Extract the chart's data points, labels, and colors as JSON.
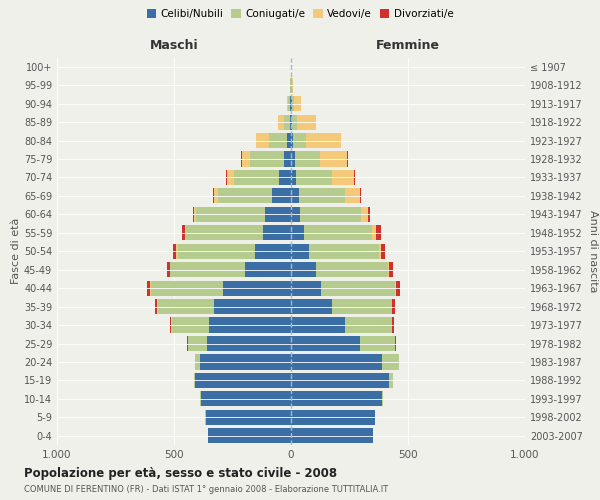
{
  "age_groups": [
    "0-4",
    "5-9",
    "10-14",
    "15-19",
    "20-24",
    "25-29",
    "30-34",
    "35-39",
    "40-44",
    "45-49",
    "50-54",
    "55-59",
    "60-64",
    "65-69",
    "70-74",
    "75-79",
    "80-84",
    "85-89",
    "90-94",
    "95-99",
    "100+"
  ],
  "birth_years": [
    "2003-2007",
    "1998-2002",
    "1993-1997",
    "1988-1992",
    "1983-1987",
    "1978-1982",
    "1973-1977",
    "1968-1972",
    "1963-1967",
    "1958-1962",
    "1953-1957",
    "1948-1952",
    "1943-1947",
    "1938-1942",
    "1933-1937",
    "1928-1932",
    "1923-1927",
    "1918-1922",
    "1913-1917",
    "1908-1912",
    "≤ 1907"
  ],
  "colors": {
    "celibe": "#3a6ea5",
    "coniugato": "#b5cc8e",
    "vedovo": "#f5c97a",
    "divorziato": "#d0312d"
  },
  "maschi": {
    "celibe": [
      355,
      365,
      385,
      410,
      390,
      360,
      350,
      330,
      290,
      195,
      155,
      120,
      110,
      80,
      50,
      30,
      15,
      5,
      3,
      2,
      2
    ],
    "coniugato": [
      0,
      1,
      2,
      5,
      20,
      80,
      160,
      240,
      310,
      320,
      330,
      330,
      295,
      230,
      195,
      145,
      80,
      25,
      8,
      2,
      0
    ],
    "vedovo": [
      0,
      0,
      0,
      0,
      1,
      1,
      1,
      2,
      2,
      3,
      5,
      5,
      10,
      20,
      30,
      35,
      55,
      25,
      8,
      2,
      0
    ],
    "divorziato": [
      0,
      0,
      0,
      0,
      1,
      2,
      5,
      10,
      15,
      12,
      15,
      12,
      4,
      3,
      2,
      2,
      0,
      0,
      0,
      0,
      0
    ]
  },
  "femmine": {
    "nubile": [
      350,
      360,
      390,
      420,
      390,
      295,
      230,
      175,
      130,
      105,
      75,
      55,
      40,
      35,
      20,
      15,
      10,
      5,
      3,
      2,
      2
    ],
    "coniugata": [
      0,
      1,
      2,
      15,
      70,
      150,
      200,
      255,
      315,
      310,
      300,
      290,
      260,
      195,
      155,
      110,
      55,
      20,
      8,
      2,
      0
    ],
    "vedova": [
      0,
      0,
      0,
      0,
      0,
      1,
      1,
      2,
      2,
      5,
      10,
      20,
      30,
      65,
      95,
      115,
      150,
      80,
      30,
      5,
      0
    ],
    "divorziata": [
      0,
      0,
      0,
      0,
      1,
      3,
      8,
      12,
      20,
      18,
      15,
      20,
      8,
      5,
      4,
      2,
      0,
      0,
      0,
      0,
      0
    ]
  },
  "title": "Popolazione per età, sesso e stato civile - 2008",
  "subtitle": "COMUNE DI FERENTINO (FR) - Dati ISTAT 1° gennaio 2008 - Elaborazione TUTTITALIA.IT",
  "xlabel_left": "Maschi",
  "xlabel_right": "Femmine",
  "ylabel_left": "Fasce di età",
  "ylabel_right": "Anni di nascita",
  "xlim": 1000,
  "bg_color": "#f0f0eb",
  "grid_color": "#ffffff",
  "center_line_color": "#a0b8d0",
  "legend_labels": [
    "Celibi/Nubili",
    "Coniugati/e",
    "Vedovi/e",
    "Divorziati/e"
  ]
}
